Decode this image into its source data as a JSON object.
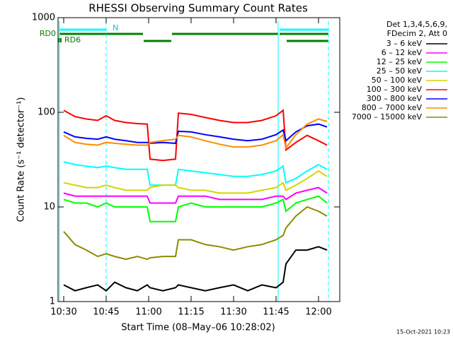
{
  "chart_data": {
    "type": "line",
    "title": "RHESSI Observing Summary Count Rates",
    "x_label": "Start Time (08–May–06 10:28:02)",
    "y_label": "Count Rate (s⁻¹ detector⁻¹)",
    "legend_title": [
      "Det 1,3,4,5,6,9,",
      "FDecim 2, Att 0"
    ],
    "footer": "15-Oct-2021 10:23",
    "annotations": {
      "n": "N",
      "rd0": "RD0",
      "rd6": "RD6"
    },
    "log_y": true,
    "xlim": [
      628,
      727.5
    ],
    "xticks": [
      {
        "value": 630,
        "label": "10:30"
      },
      {
        "value": 645,
        "label": "10:45"
      },
      {
        "value": 660,
        "label": "11:00"
      },
      {
        "value": 675,
        "label": "11:15"
      },
      {
        "value": 690,
        "label": "11:30"
      },
      {
        "value": 705,
        "label": "11:45"
      },
      {
        "value": 720,
        "label": "12:00"
      }
    ],
    "ylim": [
      1,
      1000
    ],
    "yticks": [
      1,
      10,
      100,
      1000
    ],
    "x": [
      630,
      634,
      638,
      642,
      645,
      648,
      652,
      656,
      659.5,
      660.5,
      665,
      669.5,
      670.5,
      675,
      680,
      685,
      690,
      695,
      700,
      705,
      707.5,
      708.5,
      712,
      716,
      720,
      723
    ],
    "series": [
      {
        "name": "3 – 6 keV",
        "color": "#000000",
        "values": [
          1.5,
          1.3,
          1.4,
          1.5,
          1.3,
          1.6,
          1.4,
          1.3,
          1.5,
          1.4,
          1.3,
          1.4,
          1.5,
          1.4,
          1.3,
          1.4,
          1.5,
          1.3,
          1.5,
          1.4,
          1.6,
          2.5,
          3.5,
          3.5,
          3.8,
          3.5
        ]
      },
      {
        "name": "6 – 12 keV",
        "color": "#ff00ff",
        "values": [
          14,
          13,
          13,
          13,
          13,
          13,
          13,
          13,
          13,
          11,
          11,
          11,
          13,
          13,
          13,
          12,
          12,
          12,
          12,
          13,
          13,
          12,
          14,
          15,
          16,
          14
        ]
      },
      {
        "name": "12 – 25 keV",
        "color": "#00ff00",
        "values": [
          12,
          11,
          11,
          10,
          11,
          10,
          10,
          10,
          10,
          7,
          7,
          7,
          10,
          11,
          10,
          10,
          10,
          10,
          10,
          11,
          12,
          9,
          11,
          12,
          13,
          11
        ]
      },
      {
        "name": "25 – 50 keV",
        "color": "#00ffff",
        "values": [
          30,
          28,
          27,
          26,
          27,
          26,
          25,
          25,
          25,
          17,
          17,
          17,
          25,
          24,
          23,
          22,
          21,
          21,
          22,
          24,
          27,
          18,
          20,
          24,
          28,
          25
        ]
      },
      {
        "name": "50 – 100 keV",
        "color": "#d4d400",
        "values": [
          18,
          17,
          16,
          16,
          17,
          16,
          15,
          15,
          15,
          16,
          17,
          17,
          16,
          15,
          15,
          14,
          14,
          14,
          15,
          16,
          18,
          15,
          17,
          20,
          24,
          21
        ]
      },
      {
        "name": "100 – 300 keV",
        "color": "#ff0000",
        "values": [
          105,
          90,
          85,
          82,
          92,
          82,
          78,
          76,
          75,
          32,
          31,
          32,
          98,
          95,
          88,
          82,
          78,
          78,
          82,
          92,
          105,
          40,
          48,
          57,
          50,
          45
        ]
      },
      {
        "name": "300 – 800 keV",
        "color": "#0000ff",
        "values": [
          62,
          55,
          53,
          52,
          55,
          52,
          50,
          48,
          48,
          47,
          48,
          47,
          63,
          62,
          58,
          55,
          52,
          50,
          52,
          58,
          65,
          50,
          62,
          72,
          75,
          70
        ]
      },
      {
        "name": "800 – 7000 keV",
        "color": "#ff8c00",
        "values": [
          57,
          48,
          46,
          45,
          48,
          47,
          46,
          45,
          45,
          48,
          50,
          52,
          57,
          55,
          50,
          46,
          43,
          43,
          45,
          50,
          58,
          42,
          58,
          75,
          85,
          80
        ]
      },
      {
        "name": "7000 – 15000 keV",
        "color": "#8b8b00",
        "values": [
          5.5,
          4,
          3.5,
          3,
          3.2,
          3,
          2.8,
          3,
          2.8,
          2.9,
          3,
          3,
          4.5,
          4.5,
          4,
          3.8,
          3.5,
          3.8,
          4,
          4.5,
          5,
          6,
          8,
          10,
          9,
          8
        ]
      }
    ]
  }
}
